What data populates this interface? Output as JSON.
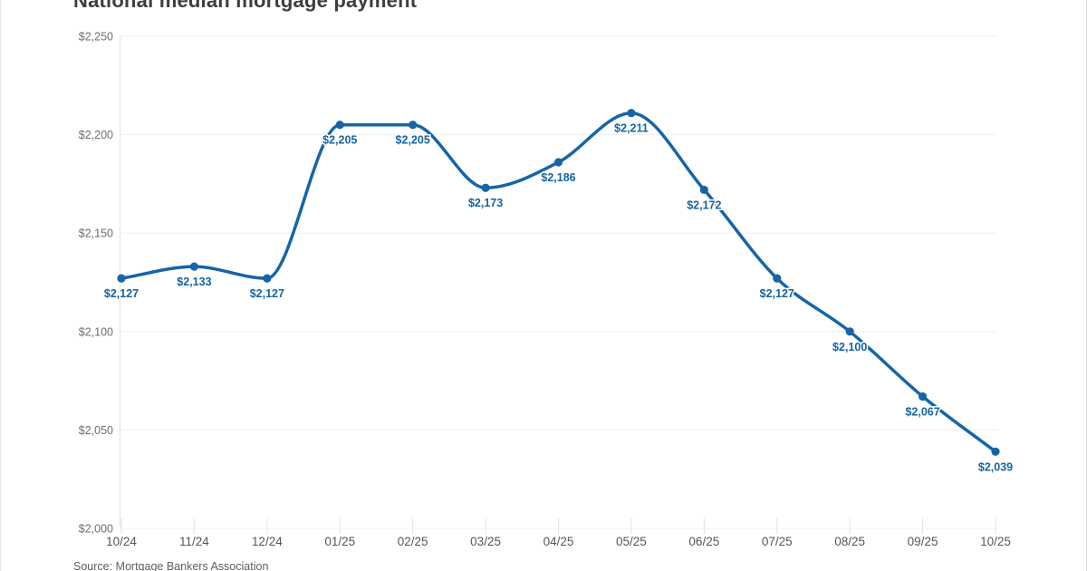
{
  "page": {
    "title": "National median mortgage payment",
    "source": "Source: Mortgage Bankers Association"
  },
  "colors": {
    "line": "#1565a8",
    "point_marker": "#1565a8",
    "point_label": "#1464a4",
    "title_text": "#3d3d3d",
    "y_axis_text": "#6e6e6e",
    "x_axis_text": "#565656",
    "gridline": "#efeff2",
    "axis_line": "#e0e2e6",
    "source_text": "#5e5e5e",
    "background": "#ffffff"
  },
  "chart_data": {
    "type": "line",
    "title": "National median mortgage payment",
    "xlabel": "",
    "ylabel": "",
    "x": [
      "10/24",
      "11/24",
      "12/24",
      "01/25",
      "02/25",
      "03/25",
      "04/25",
      "05/25",
      "06/25",
      "07/25",
      "08/25",
      "09/25",
      "10/25"
    ],
    "values": [
      2127,
      2133,
      2127,
      2205,
      2205,
      2173,
      2186,
      2211,
      2172,
      2127,
      2100,
      2067,
      2039
    ],
    "point_labels": [
      "$2,127",
      "$2,133",
      "$2,127",
      "$2,205",
      "$2,205",
      "$2,173",
      "$2,186",
      "$2,211",
      "$2,172",
      "$2,127",
      "$2,100",
      "$2,067",
      "$2,039"
    ],
    "ylim": [
      2000,
      2250
    ],
    "y_ticks": [
      {
        "value": 2000,
        "label": "$2,000"
      },
      {
        "value": 2050,
        "label": "$2,050"
      },
      {
        "value": 2100,
        "label": "$2,100"
      },
      {
        "value": 2150,
        "label": "$2,150"
      },
      {
        "value": 2200,
        "label": "$2,200"
      },
      {
        "value": 2250,
        "label": "$2,250"
      }
    ],
    "grid": "horizontal",
    "legend": "none",
    "curve": "smooth-monotone",
    "source": "Source: Mortgage Bankers Association"
  }
}
